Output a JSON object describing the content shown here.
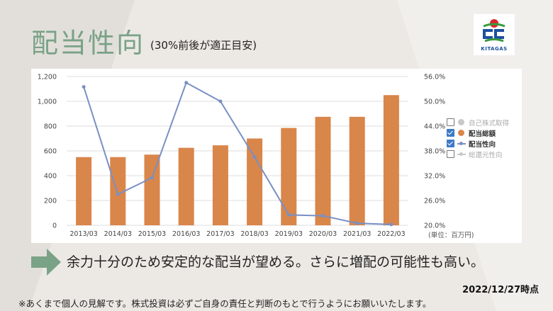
{
  "slide": {
    "title": "配当性向",
    "subtitle": "(30%前後が適正目安)",
    "message": "余力十分のため安定的な配当が望める。さらに増配の可能性も高い。",
    "date": "2022/12/27時点",
    "disclaimer": "※あくまで個人の見解です。株式投資は必ずご自身の責任と判断のもとで行うようにお願いいたします。",
    "logo_text": "KITAGAS",
    "logo_icon": "kitagas-logo-icon",
    "arrow_icon": "right-arrow-icon",
    "colors": {
      "title": "#7aa287",
      "arrow": "#7aa287",
      "bar": "#d9864a",
      "line": "#7990c4",
      "logo_red": "#d7262c",
      "logo_green": "#3a9a3e",
      "logo_blue": "#1c4fa0"
    }
  },
  "chart_data": {
    "type": "bar",
    "categories": [
      "2013/03",
      "2014/03",
      "2015/03",
      "2016/03",
      "2017/03",
      "2018/03",
      "2019/03",
      "2020/03",
      "2021/03",
      "2022/03"
    ],
    "ylim": [
      0,
      1200
    ],
    "yticks": [
      "0",
      "200",
      "400",
      "600",
      "800",
      "1,000",
      "1,200"
    ],
    "y2lim": [
      20,
      56
    ],
    "y2ticks": [
      "20.0%",
      "26.0%",
      "32.0%",
      "38.0%",
      "44.0%",
      "50.0%",
      "56.0%"
    ],
    "unit_label": "(単位：百万円)",
    "grid": true,
    "series": [
      {
        "name": "配当総額",
        "type": "bar",
        "axis": "left",
        "values": [
          550,
          550,
          570,
          625,
          645,
          700,
          785,
          875,
          875,
          1050
        ]
      },
      {
        "name": "配当性向",
        "type": "line",
        "axis": "right",
        "values": [
          53.5,
          27.5,
          31.5,
          54.5,
          50.0,
          36.5,
          22.5,
          22.3,
          20.5,
          20.2
        ]
      }
    ],
    "legend": {
      "position": "right",
      "items": [
        {
          "label": "自己株式取得",
          "checked": false,
          "kind": "dot",
          "color": "#c8c8c8"
        },
        {
          "label": "配当総額",
          "checked": true,
          "kind": "dot",
          "color": "#d9864a"
        },
        {
          "label": "配当性向",
          "checked": true,
          "kind": "line",
          "color": "#7990c4"
        },
        {
          "label": "総還元性向",
          "checked": false,
          "kind": "line",
          "color": "#c8c8c8"
        }
      ]
    }
  }
}
